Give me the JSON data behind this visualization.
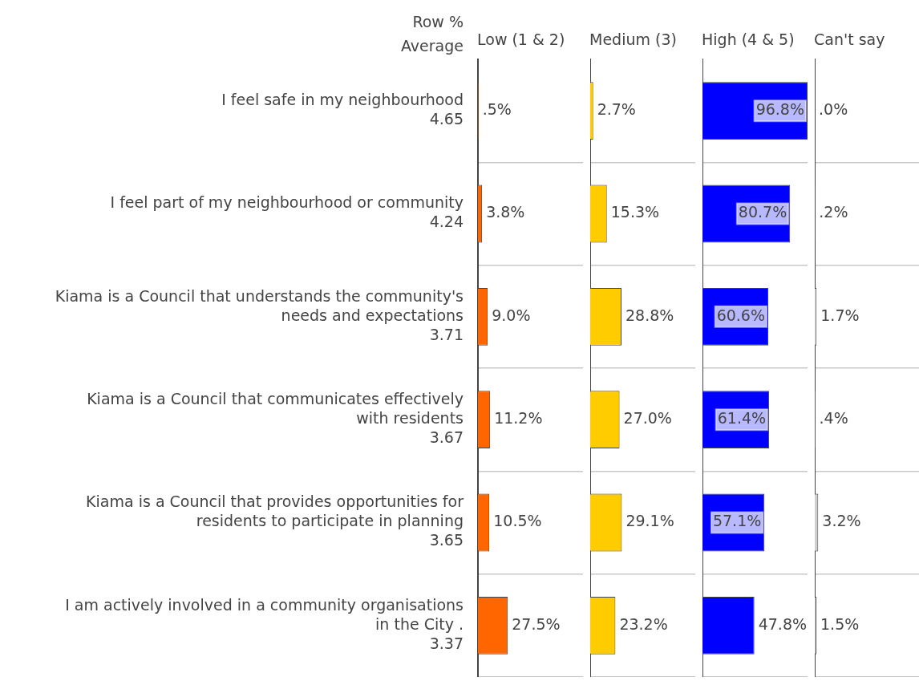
{
  "chart_data": [
    {
      "type": "bar",
      "orientation": "horizontal",
      "title": "Low (1 & 2)",
      "annotations": [
        "Row %",
        "Average"
      ],
      "tick_labels": "y",
      "grid": "y",
      "categories": [
        "I feel safe in my neighbourhood\n4.65",
        "I feel part of my neighbourhood or community\n4.24",
        "Kiama is a Council that understands the community's\nneeds and expectations\n3.71",
        "Kiama is a Council that communicates effectively\nwith residents\n3.67",
        "Kiama is a Council that provides opportunities for\nresidents to participate in planning\n3.65",
        "I am actively involved in a community organisations\nin the City .\n3.37"
      ],
      "values": [
        0.5,
        3.8,
        9.0,
        11.2,
        10.5,
        27.5
      ],
      "value_labels": [
        ".5%",
        "3.8%",
        "9.0%",
        "11.2%",
        "10.5%",
        "27.5%"
      ],
      "color": "#ff6600"
    },
    {
      "type": "bar",
      "orientation": "horizontal",
      "title": "Medium (3)",
      "tick_labels": false,
      "grid": "y",
      "categories": [
        null,
        null,
        null,
        null,
        null,
        null
      ],
      "values": [
        2.7,
        15.3,
        28.8,
        27.0,
        29.1,
        23.2
      ],
      "value_labels": [
        "2.7%",
        "15.3%",
        "28.8%",
        "27.0%",
        "29.1%",
        "23.2%"
      ],
      "color": "#ffcc00"
    },
    {
      "type": "bar",
      "orientation": "horizontal",
      "title": "High (4 & 5)",
      "tick_labels": false,
      "grid": "y",
      "categories": [
        null,
        null,
        null,
        null,
        null,
        null
      ],
      "values": [
        96.8,
        80.7,
        60.6,
        61.4,
        57.1,
        47.8
      ],
      "value_labels": [
        "96.8%",
        "80.7%",
        "60.6%",
        "61.4%",
        "57.1%",
        "47.8%"
      ],
      "color": "#0000ff"
    },
    {
      "type": "bar",
      "orientation": "horizontal",
      "title": "Can't say",
      "tick_labels": false,
      "grid": "y",
      "categories": [
        null,
        null,
        null,
        null,
        null,
        null
      ],
      "values": [
        0.0,
        0.2,
        1.7,
        0.4,
        3.2,
        1.5
      ],
      "value_labels": [
        ".0%",
        ".2%",
        "1.7%",
        ".4%",
        "3.2%",
        "1.5%"
      ],
      "color": "#d0d0d0"
    }
  ]
}
